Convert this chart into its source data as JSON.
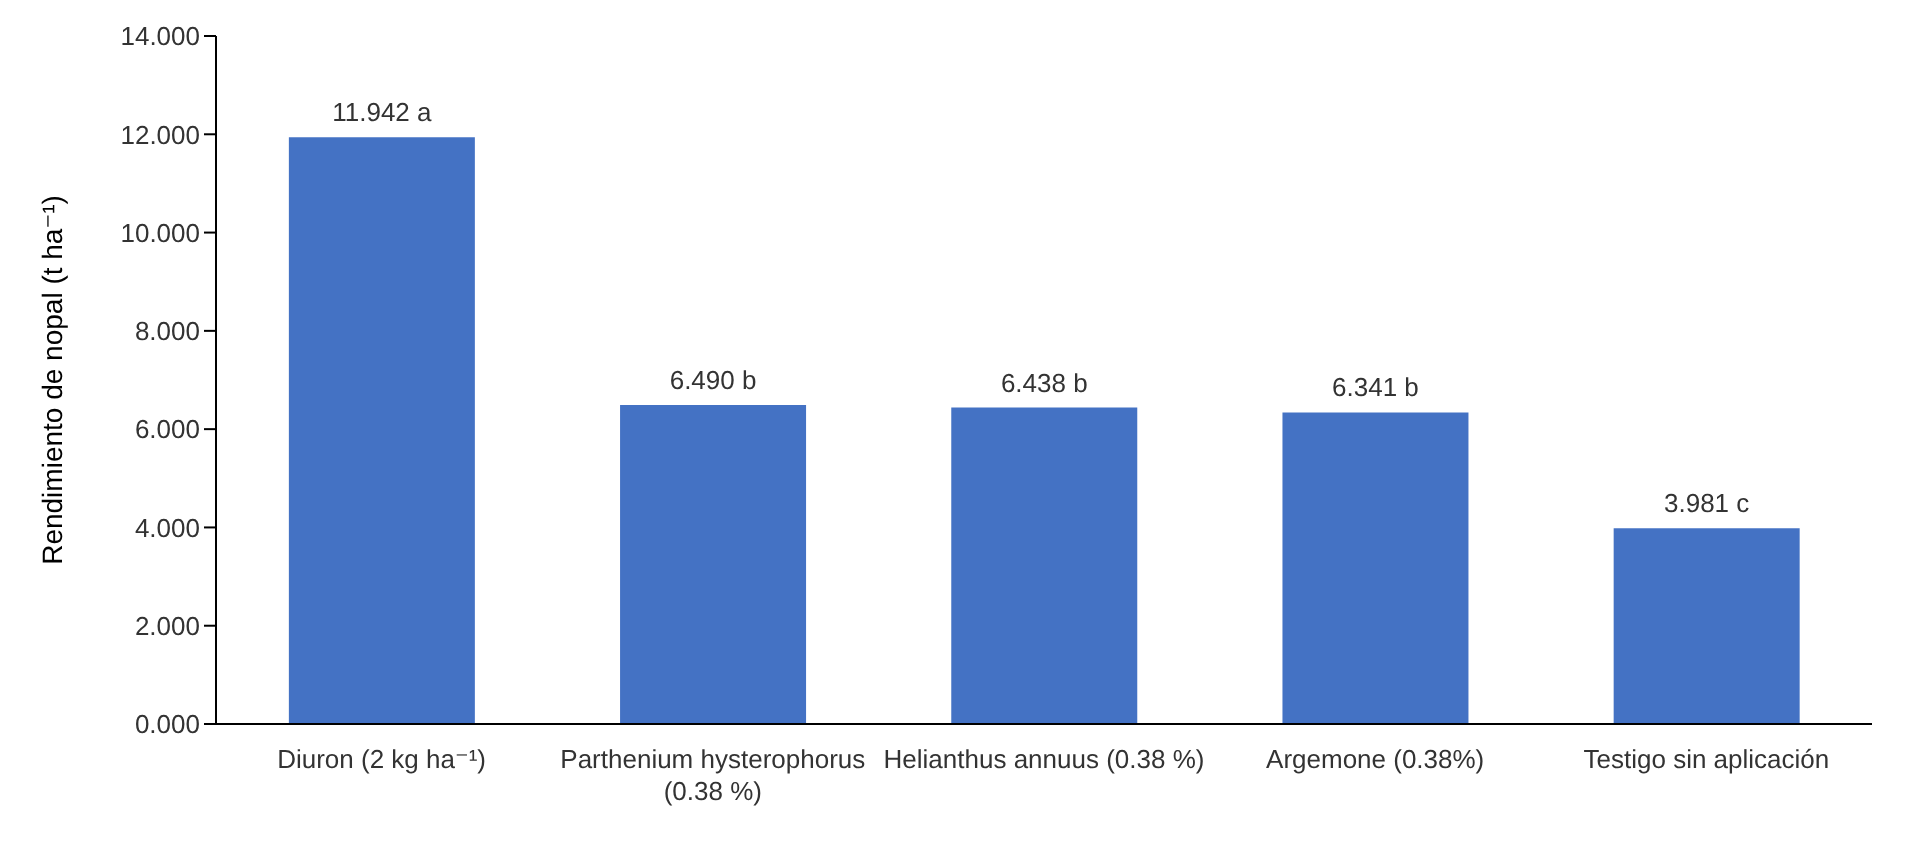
{
  "chart_data": {
    "type": "bar",
    "ylabel": "Rendimiento de nopal (t ha⁻¹)",
    "categories": [
      "Diuron (2 kg ha⁻¹)",
      "Parthenium hysterophorus (0.38 %)",
      "Helianthus annuus (0.38 %)",
      "Argemone (0.38%)",
      "Testigo sin aplicación"
    ],
    "values": [
      11.942,
      6.49,
      6.438,
      6.341,
      3.981
    ],
    "value_labels": [
      "11.942 a",
      "6.490 b",
      "6.438 b",
      "6.341 b",
      "3.981 c"
    ],
    "color": "#4472c4",
    "ylim": [
      0,
      14
    ],
    "yticks": [
      {
        "value": 0,
        "label": "0.000"
      },
      {
        "value": 2,
        "label": "2.000"
      },
      {
        "value": 4,
        "label": "4.000"
      },
      {
        "value": 6,
        "label": "6.000"
      },
      {
        "value": 8,
        "label": "8.000"
      },
      {
        "value": 10,
        "label": "10.000"
      },
      {
        "value": 12,
        "label": "12.000"
      },
      {
        "value": 14,
        "label": "14.000"
      }
    ],
    "grid": false,
    "legend": false
  }
}
